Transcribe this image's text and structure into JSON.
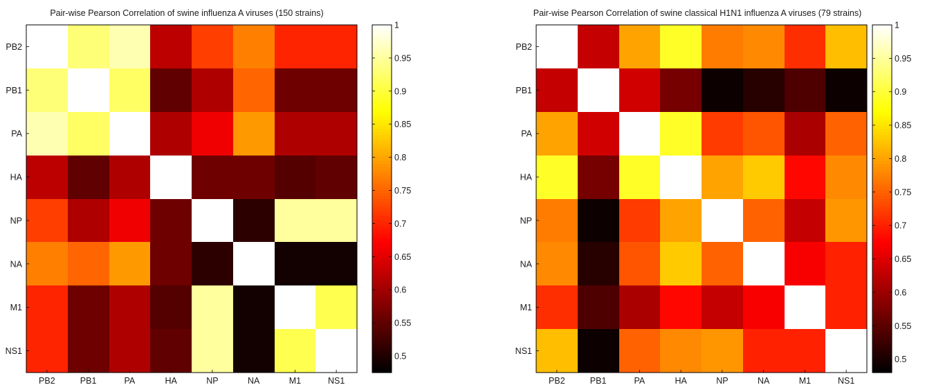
{
  "chart_data": [
    {
      "type": "heatmap",
      "title": "Pair-wise Pearson Correlation of swine influenza A viruses (150 strains)",
      "xlabel": "",
      "ylabel": "",
      "categories": [
        "PB2",
        "PB1",
        "PA",
        "HA",
        "NP",
        "NA",
        "M1",
        "NS1"
      ],
      "colormap": "hot",
      "clim": [
        0.475,
        1
      ],
      "colorbar_ticks": [
        "0.5",
        "0.55",
        "0.6",
        "0.65",
        "0.7",
        "0.75",
        "0.8",
        "0.85",
        "0.9",
        "0.95",
        "1"
      ],
      "matrix": [
        [
          1.0,
          0.93,
          0.96,
          0.62,
          0.72,
          0.77,
          0.7,
          0.7
        ],
        [
          0.93,
          1.0,
          0.92,
          0.55,
          0.61,
          0.75,
          0.56,
          0.56
        ],
        [
          0.96,
          0.92,
          1.0,
          0.61,
          0.66,
          0.79,
          0.61,
          0.61
        ],
        [
          0.62,
          0.55,
          0.61,
          1.0,
          0.56,
          0.56,
          0.54,
          0.55
        ],
        [
          0.72,
          0.61,
          0.66,
          0.56,
          1.0,
          0.51,
          0.95,
          0.95
        ],
        [
          0.77,
          0.75,
          0.79,
          0.56,
          0.51,
          1.0,
          0.49,
          0.49
        ],
        [
          0.7,
          0.56,
          0.61,
          0.54,
          0.95,
          0.49,
          1.0,
          0.91
        ],
        [
          0.7,
          0.56,
          0.61,
          0.55,
          0.95,
          0.49,
          0.91,
          1.0
        ]
      ]
    },
    {
      "type": "heatmap",
      "title": "Pair-wise Pearson Correlation of swine classical H1N1 influenza A viruses (79 strains)",
      "xlabel": "",
      "ylabel": "",
      "categories": [
        "PB2",
        "PB1",
        "PA",
        "HA",
        "NP",
        "NA",
        "M1",
        "NS1"
      ],
      "colormap": "hot",
      "clim": [
        0.48,
        1
      ],
      "colorbar_ticks": [
        "0.5",
        "0.55",
        "0.6",
        "0.65",
        "0.7",
        "0.75",
        "0.8",
        "0.85",
        "0.9",
        "0.95",
        "1"
      ],
      "matrix": [
        [
          1.0,
          0.63,
          0.8,
          0.89,
          0.77,
          0.78,
          0.71,
          0.82
        ],
        [
          0.63,
          1.0,
          0.64,
          0.57,
          0.49,
          0.51,
          0.54,
          0.49
        ],
        [
          0.8,
          0.64,
          1.0,
          0.89,
          0.72,
          0.74,
          0.61,
          0.75
        ],
        [
          0.89,
          0.57,
          0.89,
          1.0,
          0.8,
          0.83,
          0.68,
          0.78
        ],
        [
          0.77,
          0.49,
          0.72,
          0.8,
          1.0,
          0.75,
          0.63,
          0.79
        ],
        [
          0.78,
          0.51,
          0.74,
          0.83,
          0.75,
          1.0,
          0.67,
          0.7
        ],
        [
          0.71,
          0.54,
          0.61,
          0.68,
          0.63,
          0.67,
          1.0,
          0.7
        ],
        [
          0.82,
          0.49,
          0.75,
          0.78,
          0.79,
          0.7,
          0.7,
          1.0
        ]
      ]
    }
  ]
}
